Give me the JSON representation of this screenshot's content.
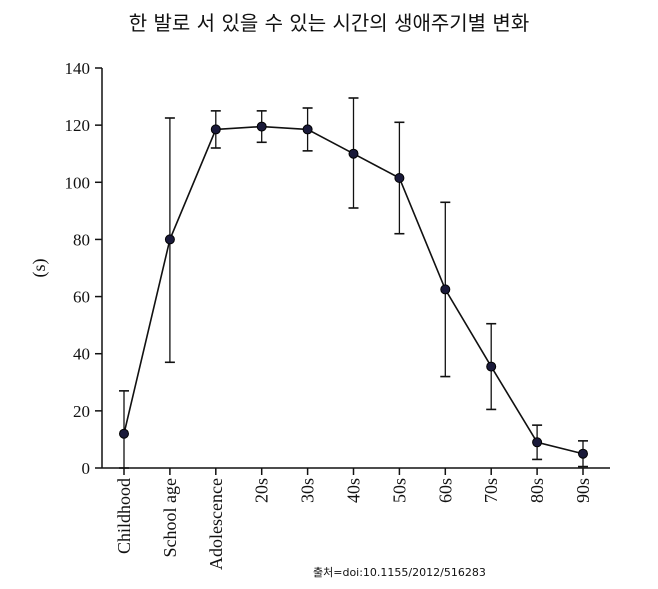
{
  "chart_data": {
    "type": "line",
    "title": "한 발로 서 있을 수 있는 시간의 생애주기별 변화",
    "ylabel": "(s)",
    "xlabel": "",
    "ylim": [
      0,
      140
    ],
    "yticks": [
      "0",
      "20",
      "40",
      "60",
      "80",
      "100",
      "120",
      "140"
    ],
    "categories": [
      "Childhood",
      "School age",
      "Adolescence",
      "20s",
      "30s",
      "40s",
      "50s",
      "60s",
      "70s",
      "80s",
      "90s"
    ],
    "values": [
      12,
      80,
      118.5,
      119.5,
      118.5,
      110,
      101.5,
      62.5,
      35.5,
      9,
      5
    ],
    "error_upper": [
      27,
      122.5,
      125,
      125,
      126,
      129.5,
      121,
      93,
      50.5,
      15,
      9.5
    ],
    "error_lower": [
      0,
      37,
      112,
      114,
      111,
      91,
      82,
      32,
      20.5,
      3,
      0.5
    ],
    "grid": false,
    "source": "출처=doi:10.1155/2012/516283",
    "colors": {
      "line": "#111111",
      "marker": "#1a1a3a"
    }
  }
}
